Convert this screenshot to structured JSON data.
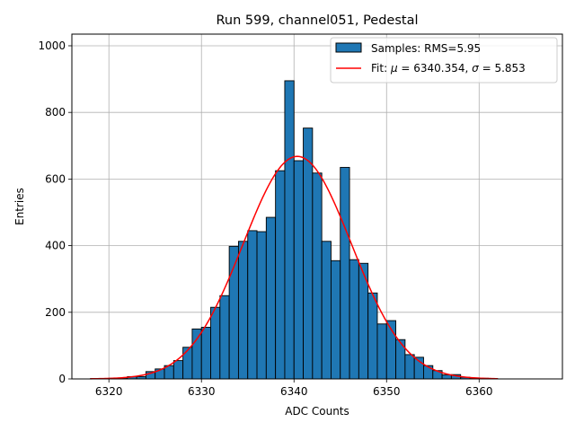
{
  "chart_data": {
    "type": "bar",
    "title": "Run 599, channel051, Pedestal",
    "xlabel": "ADC Counts",
    "ylabel": "Entries",
    "xlim": [
      6316,
      6369
    ],
    "ylim": [
      0,
      1035
    ],
    "xticks": [
      "6320",
      "6330",
      "6340",
      "6350",
      "6360"
    ],
    "yticks": [
      "0",
      "200",
      "400",
      "600",
      "800",
      "1000"
    ],
    "grid": true,
    "legend_position": "top-right",
    "colors": {
      "bar": "#1f77b4",
      "fit": "#ff0000"
    },
    "histogram": {
      "name": "Samples: RMS=5.95",
      "bin_width": 1,
      "bin_lefts": [
        6318,
        6319,
        6320,
        6321,
        6322,
        6323,
        6324,
        6325,
        6326,
        6327,
        6328,
        6329,
        6330,
        6331,
        6332,
        6333,
        6334,
        6335,
        6336,
        6337,
        6338,
        6339,
        6340,
        6341,
        6342,
        6343,
        6344,
        6345,
        6346,
        6347,
        6348,
        6349,
        6350,
        6351,
        6352,
        6353,
        6354,
        6355,
        6356,
        6357,
        6358,
        6359,
        6360,
        6361
      ],
      "values": [
        1,
        1,
        2,
        3,
        7,
        7,
        22,
        30,
        40,
        55,
        95,
        150,
        155,
        215,
        250,
        398,
        413,
        445,
        442,
        485,
        625,
        895,
        655,
        753,
        618,
        413,
        355,
        635,
        358,
        347,
        258,
        165,
        175,
        118,
        73,
        65,
        40,
        25,
        12,
        13,
        5,
        3,
        2,
        1
      ]
    },
    "fit": {
      "label_prefix": "Fit: ",
      "mu_symbol": "μ",
      "mu_text": " = 6340.354, ",
      "sigma_symbol": "σ",
      "sigma_text": " = 5.853",
      "mu": 6340.354,
      "sigma": 5.853,
      "amplitude": 668,
      "x_range": [
        6318,
        6362
      ]
    }
  }
}
